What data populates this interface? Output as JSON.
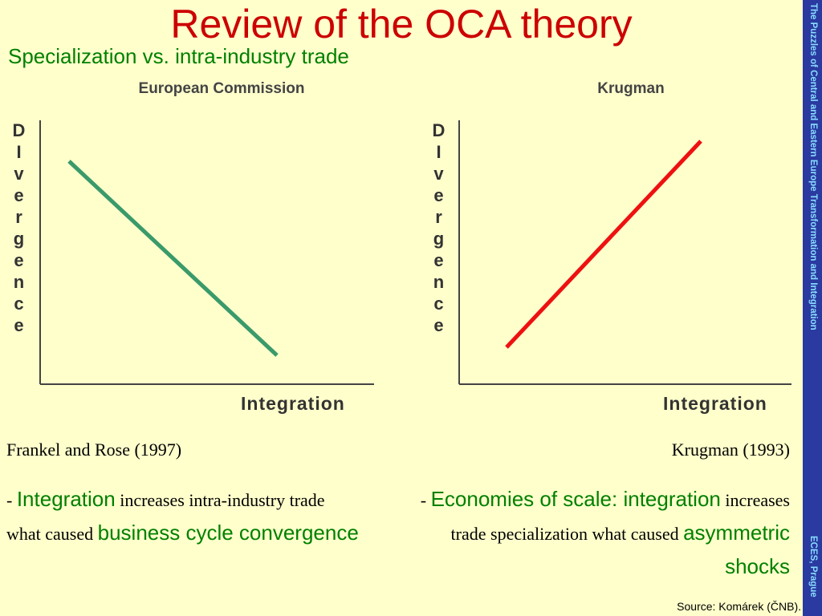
{
  "title": "Review of the OCA theory",
  "subtitle": "Specialization vs. intra-industry trade",
  "sidebar": {
    "top": "The Puzzles of Central and Eastern Europe Transformation and Integration",
    "bottom": "ECES, Prague"
  },
  "panels": [
    {
      "title": "European Commission",
      "ylabel": "DIvergence",
      "xlabel": "Integration"
    },
    {
      "title": "Krugman",
      "ylabel": "DIvergence",
      "xlabel": "Integration"
    }
  ],
  "left": {
    "caption": "Frankel and Rose (1997)",
    "text": [
      "- ",
      "Integration",
      " increases intra-industry trade what caused ",
      "business cycle convergence"
    ]
  },
  "right": {
    "caption": "Krugman (1993)",
    "text": [
      "- ",
      "Economies of scale: integration",
      " increases trade specialization what caused ",
      "asymmetric shocks"
    ]
  },
  "source": "Source: Komárek (ČNB)."
}
